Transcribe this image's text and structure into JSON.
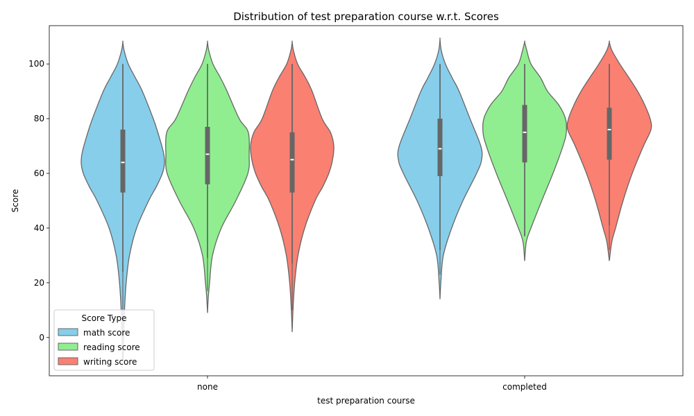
{
  "chart_data": {
    "type": "violin",
    "title": "Distribution of test preparation course w.r.t. Scores",
    "xlabel": "test preparation course",
    "ylabel": "Score",
    "categories": [
      "none",
      "completed"
    ],
    "ylim": [
      -14,
      114
    ],
    "yticks": [
      0,
      20,
      40,
      60,
      80,
      100
    ],
    "grid": false,
    "legend": {
      "title": "Score Type",
      "placement": "lower-left"
    },
    "series": [
      {
        "name": "math score",
        "color": "#87CEEB",
        "groups": [
          {
            "category": "none",
            "min": 0,
            "q1": 53,
            "median": 64,
            "q3": 76,
            "max": 100,
            "whisker_low": 24,
            "density": [
              [
                -8,
                0.01
              ],
              [
                0,
                0.02
              ],
              [
                10,
                0.04
              ],
              [
                20,
                0.08
              ],
              [
                30,
                0.16
              ],
              [
                40,
                0.33
              ],
              [
                50,
                0.62
              ],
              [
                55,
                0.8
              ],
              [
                60,
                0.95
              ],
              [
                64,
                1.0
              ],
              [
                68,
                0.97
              ],
              [
                75,
                0.84
              ],
              [
                80,
                0.73
              ],
              [
                90,
                0.47
              ],
              [
                95,
                0.3
              ],
              [
                100,
                0.13
              ],
              [
                105,
                0.03
              ],
              [
                108,
                0.0
              ]
            ]
          },
          {
            "category": "completed",
            "min": 23,
            "q1": 59,
            "median": 69,
            "q3": 80,
            "max": 100,
            "whisker_low": 32,
            "density": [
              [
                14,
                0.0
              ],
              [
                20,
                0.02
              ],
              [
                30,
                0.08
              ],
              [
                40,
                0.28
              ],
              [
                50,
                0.55
              ],
              [
                60,
                0.88
              ],
              [
                65,
                1.0
              ],
              [
                70,
                0.98
              ],
              [
                80,
                0.72
              ],
              [
                90,
                0.46
              ],
              [
                95,
                0.29
              ],
              [
                100,
                0.13
              ],
              [
                105,
                0.03
              ],
              [
                109,
                0.0
              ]
            ]
          }
        ]
      },
      {
        "name": "reading score",
        "color": "#90EE90",
        "groups": [
          {
            "category": "none",
            "min": 17,
            "q1": 56,
            "median": 67,
            "q3": 77,
            "max": 100,
            "whisker_low": 29,
            "density": [
              [
                9,
                0.0
              ],
              [
                15,
                0.02
              ],
              [
                20,
                0.05
              ],
              [
                30,
                0.12
              ],
              [
                40,
                0.33
              ],
              [
                50,
                0.68
              ],
              [
                60,
                0.97
              ],
              [
                67,
                1.0
              ],
              [
                75,
                0.98
              ],
              [
                80,
                0.76
              ],
              [
                90,
                0.47
              ],
              [
                95,
                0.31
              ],
              [
                100,
                0.13
              ],
              [
                105,
                0.03
              ],
              [
                108,
                0.0
              ]
            ]
          },
          {
            "category": "completed",
            "min": 37,
            "q1": 64,
            "median": 75,
            "q3": 85,
            "max": 100,
            "whisker_low": 37,
            "density": [
              [
                28,
                0.0
              ],
              [
                35,
                0.04
              ],
              [
                40,
                0.15
              ],
              [
                50,
                0.41
              ],
              [
                60,
                0.68
              ],
              [
                70,
                0.92
              ],
              [
                75,
                1.0
              ],
              [
                80,
                0.98
              ],
              [
                85,
                0.82
              ],
              [
                90,
                0.55
              ],
              [
                95,
                0.38
              ],
              [
                100,
                0.15
              ],
              [
                105,
                0.05
              ],
              [
                108,
                0.0
              ]
            ]
          }
        ]
      },
      {
        "name": "writing score",
        "color": "#FA8072",
        "groups": [
          {
            "category": "none",
            "min": 10,
            "q1": 53,
            "median": 65,
            "q3": 75,
            "max": 100,
            "whisker_low": 27,
            "density": [
              [
                2,
                0.0
              ],
              [
                10,
                0.02
              ],
              [
                20,
                0.06
              ],
              [
                30,
                0.14
              ],
              [
                40,
                0.3
              ],
              [
                50,
                0.55
              ],
              [
                55,
                0.73
              ],
              [
                60,
                0.88
              ],
              [
                65,
                0.97
              ],
              [
                70,
                1.0
              ],
              [
                75,
                0.92
              ],
              [
                80,
                0.72
              ],
              [
                90,
                0.48
              ],
              [
                95,
                0.32
              ],
              [
                100,
                0.13
              ],
              [
                105,
                0.03
              ],
              [
                108,
                0.0
              ]
            ]
          },
          {
            "category": "completed",
            "min": 32,
            "q1": 65,
            "median": 76,
            "q3": 84,
            "max": 100,
            "whisker_low": 41,
            "density": [
              [
                28,
                0.0
              ],
              [
                35,
                0.06
              ],
              [
                40,
                0.15
              ],
              [
                50,
                0.33
              ],
              [
                60,
                0.55
              ],
              [
                70,
                0.82
              ],
              [
                76,
                1.0
              ],
              [
                80,
                0.98
              ],
              [
                85,
                0.85
              ],
              [
                90,
                0.68
              ],
              [
                95,
                0.47
              ],
              [
                100,
                0.25
              ],
              [
                105,
                0.06
              ],
              [
                108,
                0.0
              ]
            ]
          }
        ]
      }
    ]
  }
}
